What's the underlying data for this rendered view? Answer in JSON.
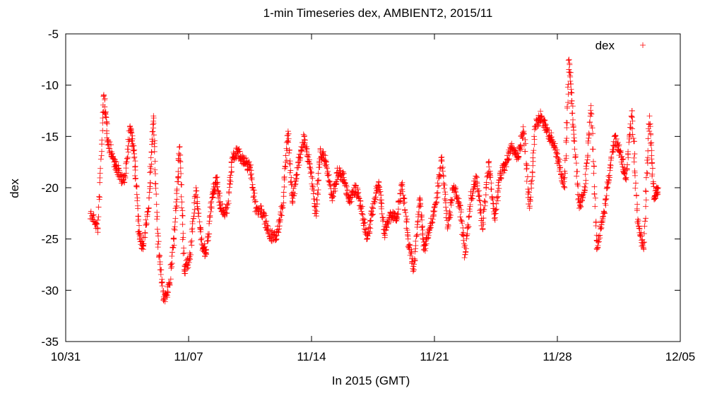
{
  "chart_data": {
    "type": "scatter",
    "title": "1-min Timeseries dex, AMBIENT2, 2015/11",
    "xlabel": "In 2015 (GMT)",
    "ylabel": "dex",
    "xlim": [
      "2015-10-31",
      "2015-12-05"
    ],
    "ylim": [
      -35,
      -5
    ],
    "x_ticks": [
      "10/31",
      "11/07",
      "11/14",
      "11/21",
      "11/28",
      "12/05"
    ],
    "y_ticks": [
      -5,
      -10,
      -15,
      -20,
      -25,
      -30,
      -35
    ],
    "grid": false,
    "legend": {
      "placement": "top-right",
      "entries": [
        "dex"
      ]
    },
    "series": [
      {
        "name": "dex",
        "color": "#ff0000",
        "marker": "plus",
        "points": [
          [
            "2015-11-01 10:00",
            -22.5
          ],
          [
            "2015-11-01 20:00",
            -24.0
          ],
          [
            "2015-11-02 04:00",
            -11.0
          ],
          [
            "2015-11-02 10:00",
            -15.5
          ],
          [
            "2015-11-02 18:00",
            -17.5
          ],
          [
            "2015-11-03 00:00",
            -18.5
          ],
          [
            "2015-11-03 08:00",
            -19.5
          ],
          [
            "2015-11-03 16:00",
            -14.0
          ],
          [
            "2015-11-03 22:00",
            -17.0
          ],
          [
            "2015-11-04 04:00",
            -24.5
          ],
          [
            "2015-11-04 10:00",
            -26.0
          ],
          [
            "2015-11-04 18:00",
            -21.0
          ],
          [
            "2015-11-05 00:00",
            -13.0
          ],
          [
            "2015-11-05 06:00",
            -25.5
          ],
          [
            "2015-11-05 14:00",
            -31.0
          ],
          [
            "2015-11-05 22:00",
            -29.5
          ],
          [
            "2015-11-06 06:00",
            -23.0
          ],
          [
            "2015-11-06 12:00",
            -16.0
          ],
          [
            "2015-11-06 18:00",
            -28.0
          ],
          [
            "2015-11-07 02:00",
            -27.0
          ],
          [
            "2015-11-07 10:00",
            -20.0
          ],
          [
            "2015-11-07 18:00",
            -25.5
          ],
          [
            "2015-11-08 00:00",
            -26.5
          ],
          [
            "2015-11-08 08:00",
            -21.0
          ],
          [
            "2015-11-08 14:00",
            -19.0
          ],
          [
            "2015-11-08 20:00",
            -22.0
          ],
          [
            "2015-11-09 04:00",
            -22.5
          ],
          [
            "2015-11-09 12:00",
            -17.0
          ],
          [
            "2015-11-09 20:00",
            -16.5
          ],
          [
            "2015-11-10 04:00",
            -17.5
          ],
          [
            "2015-11-10 12:00",
            -18.0
          ],
          [
            "2015-11-10 20:00",
            -22.0
          ],
          [
            "2015-11-11 06:00",
            -22.5
          ],
          [
            "2015-11-11 14:00",
            -24.5
          ],
          [
            "2015-11-12 00:00",
            -25.0
          ],
          [
            "2015-11-12 08:00",
            -22.0
          ],
          [
            "2015-11-12 16:00",
            -14.5
          ],
          [
            "2015-11-12 22:00",
            -21.5
          ],
          [
            "2015-11-13 06:00",
            -17.5
          ],
          [
            "2015-11-13 14:00",
            -15.0
          ],
          [
            "2015-11-13 22:00",
            -18.0
          ],
          [
            "2015-11-14 06:00",
            -22.5
          ],
          [
            "2015-11-14 12:00",
            -16.5
          ],
          [
            "2015-11-14 20:00",
            -17.5
          ],
          [
            "2015-11-15 04:00",
            -21.0
          ],
          [
            "2015-11-15 12:00",
            -18.5
          ],
          [
            "2015-11-15 20:00",
            -19.0
          ],
          [
            "2015-11-16 04:00",
            -21.5
          ],
          [
            "2015-11-16 12:00",
            -20.0
          ],
          [
            "2015-11-16 20:00",
            -22.0
          ],
          [
            "2015-11-17 04:00",
            -25.0
          ],
          [
            "2015-11-17 12:00",
            -22.0
          ],
          [
            "2015-11-17 20:00",
            -19.5
          ],
          [
            "2015-11-18 04:00",
            -24.5
          ],
          [
            "2015-11-18 12:00",
            -22.5
          ],
          [
            "2015-11-18 20:00",
            -23.0
          ],
          [
            "2015-11-19 04:00",
            -19.5
          ],
          [
            "2015-11-19 12:00",
            -25.0
          ],
          [
            "2015-11-19 20:00",
            -28.0
          ],
          [
            "2015-11-20 04:00",
            -21.0
          ],
          [
            "2015-11-20 10:00",
            -26.0
          ],
          [
            "2015-11-20 18:00",
            -24.0
          ],
          [
            "2015-11-21 02:00",
            -21.5
          ],
          [
            "2015-11-21 10:00",
            -17.0
          ],
          [
            "2015-11-21 18:00",
            -24.0
          ],
          [
            "2015-11-22 02:00",
            -20.0
          ],
          [
            "2015-11-22 10:00",
            -21.5
          ],
          [
            "2015-11-22 18:00",
            -26.5
          ],
          [
            "2015-11-23 02:00",
            -21.0
          ],
          [
            "2015-11-23 10:00",
            -19.0
          ],
          [
            "2015-11-23 18:00",
            -24.0
          ],
          [
            "2015-11-24 02:00",
            -17.5
          ],
          [
            "2015-11-24 10:00",
            -23.0
          ],
          [
            "2015-11-24 18:00",
            -19.0
          ],
          [
            "2015-11-25 02:00",
            -17.5
          ],
          [
            "2015-11-25 10:00",
            -16.0
          ],
          [
            "2015-11-25 18:00",
            -17.0
          ],
          [
            "2015-11-26 02:00",
            -14.5
          ],
          [
            "2015-11-26 10:00",
            -22.0
          ],
          [
            "2015-11-26 18:00",
            -14.0
          ],
          [
            "2015-11-27 02:00",
            -13.0
          ],
          [
            "2015-11-27 10:00",
            -14.5
          ],
          [
            "2015-11-27 18:00",
            -15.5
          ],
          [
            "2015-11-28 02:00",
            -17.5
          ],
          [
            "2015-11-28 10:00",
            -20.0
          ],
          [
            "2015-11-28 16:00",
            -7.5
          ],
          [
            "2015-11-28 22:00",
            -14.0
          ],
          [
            "2015-11-29 06:00",
            -22.0
          ],
          [
            "2015-11-29 14:00",
            -20.0
          ],
          [
            "2015-11-29 22:00",
            -12.0
          ],
          [
            "2015-11-30 06:00",
            -26.0
          ],
          [
            "2015-11-30 14:00",
            -23.0
          ],
          [
            "2015-11-30 22:00",
            -19.5
          ],
          [
            "2015-12-01 06:00",
            -15.0
          ],
          [
            "2015-12-01 14:00",
            -16.5
          ],
          [
            "2015-12-01 22:00",
            -19.0
          ],
          [
            "2015-12-02 06:00",
            -12.5
          ],
          [
            "2015-12-02 14:00",
            -23.5
          ],
          [
            "2015-12-02 22:00",
            -26.0
          ],
          [
            "2015-12-03 06:00",
            -13.0
          ],
          [
            "2015-12-03 12:00",
            -21.0
          ],
          [
            "2015-12-03 18:00",
            -20.0
          ]
        ]
      }
    ]
  }
}
